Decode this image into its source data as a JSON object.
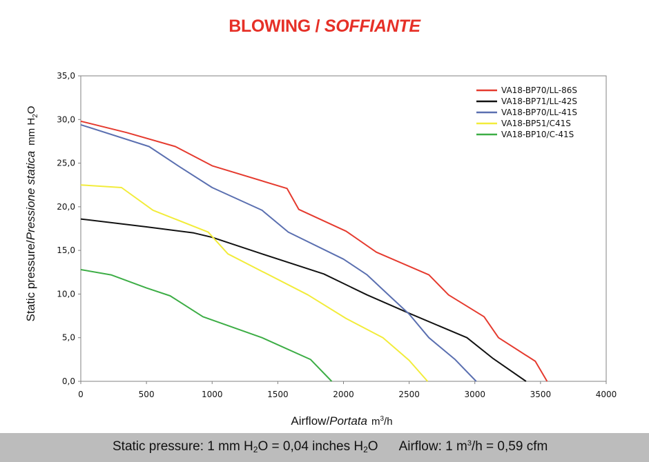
{
  "header": {
    "title_en": "BLOWING",
    "title_sep": " / ",
    "title_it": "SOFFIANTE"
  },
  "chart_data": {
    "type": "line",
    "title": "BLOWING / SOFFIANTE",
    "xlabel": {
      "en": "Airflow",
      "sep": "/",
      "it": "Portata",
      "unit_pre": "m",
      "unit_sup": "3",
      "unit_post": "/h"
    },
    "ylabel": {
      "en": "Static pressure",
      "sep": "/",
      "it": "Pressione statica",
      "unit_pre": "mm  H",
      "unit_sub": "2",
      "unit_post": "O"
    },
    "xlim": [
      0,
      4000
    ],
    "ylim": [
      0,
      35
    ],
    "x_ticks": [
      0,
      500,
      1000,
      1500,
      2000,
      2500,
      3000,
      3500,
      4000
    ],
    "x_tick_labels": [
      "0",
      "500",
      "1000",
      "1500",
      "2000",
      "2500",
      "3000",
      "3500",
      "4000"
    ],
    "y_ticks": [
      0,
      5,
      10,
      15,
      20,
      25,
      30,
      35
    ],
    "y_tick_labels": [
      "0,0",
      "5,0",
      "10,0",
      "15,0",
      "20,0",
      "25,0",
      "30,0",
      "35,0"
    ],
    "legend_position": "top-right",
    "series": [
      {
        "name": "VA18-BP70/LL-86S",
        "color": "#e53a2e",
        "points": [
          [
            0,
            29.8
          ],
          [
            350,
            28.5
          ],
          [
            720,
            26.9
          ],
          [
            1000,
            24.7
          ],
          [
            1570,
            22.1
          ],
          [
            1660,
            19.7
          ],
          [
            2020,
            17.2
          ],
          [
            2250,
            14.8
          ],
          [
            2650,
            12.2
          ],
          [
            2800,
            9.9
          ],
          [
            3070,
            7.4
          ],
          [
            3180,
            5.0
          ],
          [
            3460,
            2.3
          ],
          [
            3550,
            0
          ]
        ]
      },
      {
        "name": "VA18-BP71/LL-42S",
        "color": "#111111",
        "points": [
          [
            0,
            18.6
          ],
          [
            500,
            17.7
          ],
          [
            860,
            17.0
          ],
          [
            1000,
            16.5
          ],
          [
            1380,
            14.6
          ],
          [
            1850,
            12.3
          ],
          [
            2180,
            9.9
          ],
          [
            2500,
            7.8
          ],
          [
            2940,
            5.0
          ],
          [
            3140,
            2.6
          ],
          [
            3390,
            0
          ]
        ]
      },
      {
        "name": "VA18-BP70/LL-41S",
        "color": "#5a6fb0",
        "points": [
          [
            0,
            29.4
          ],
          [
            520,
            26.9
          ],
          [
            750,
            24.6
          ],
          [
            1000,
            22.2
          ],
          [
            1380,
            19.6
          ],
          [
            1580,
            17.1
          ],
          [
            2000,
            14.0
          ],
          [
            2180,
            12.2
          ],
          [
            2350,
            9.8
          ],
          [
            2500,
            7.7
          ],
          [
            2650,
            5.0
          ],
          [
            2850,
            2.5
          ],
          [
            3010,
            0
          ]
        ]
      },
      {
        "name": "VA18-BP51/C41S",
        "color": "#f2ec3a",
        "points": [
          [
            0,
            22.5
          ],
          [
            310,
            22.2
          ],
          [
            550,
            19.6
          ],
          [
            970,
            17.1
          ],
          [
            1120,
            14.6
          ],
          [
            1730,
            9.9
          ],
          [
            2020,
            7.2
          ],
          [
            2300,
            5.0
          ],
          [
            2500,
            2.4
          ],
          [
            2640,
            0
          ]
        ]
      },
      {
        "name": "VA18-BP10/C-41S",
        "color": "#3cad45",
        "points": [
          [
            0,
            12.8
          ],
          [
            230,
            12.2
          ],
          [
            500,
            10.7
          ],
          [
            680,
            9.8
          ],
          [
            930,
            7.4
          ],
          [
            1380,
            5.0
          ],
          [
            1750,
            2.5
          ],
          [
            1910,
            0
          ]
        ]
      }
    ]
  },
  "footer": {
    "sp_label": "Static pressure: 1 mm H",
    "sp_sub1": "2",
    "sp_mid": "O = 0,04 inches H",
    "sp_sub2": "2",
    "sp_end": "O",
    "af_label": "Airflow: 1 m",
    "af_sup": "3",
    "af_end": "/h = 0,59 cfm"
  }
}
